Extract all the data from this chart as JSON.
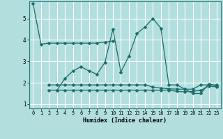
{
  "xlabel": "Humidex (Indice chaleur)",
  "background_color": "#b2dede",
  "grid_color": "#ffffff",
  "line_color": "#1a6b6b",
  "xlim": [
    -0.5,
    23.5
  ],
  "ylim": [
    0.8,
    5.8
  ],
  "yticks": [
    1,
    2,
    3,
    4,
    5
  ],
  "xticks": [
    0,
    1,
    2,
    3,
    4,
    5,
    6,
    7,
    8,
    9,
    10,
    11,
    12,
    13,
    14,
    15,
    16,
    17,
    18,
    19,
    20,
    21,
    22,
    23
  ],
  "series": [
    {
      "x": [
        0,
        1,
        2,
        3,
        4,
        5,
        6,
        7,
        8,
        9,
        10
      ],
      "y": [
        5.7,
        3.8,
        3.85,
        3.85,
        3.85,
        3.85,
        3.85,
        3.85,
        3.85,
        3.9,
        3.95
      ]
    },
    {
      "x": [
        3,
        4,
        5,
        6,
        7,
        8,
        9,
        10,
        11,
        12,
        13,
        14,
        15,
        16,
        17,
        18,
        19,
        20,
        21,
        22,
        23
      ],
      "y": [
        1.65,
        2.2,
        2.55,
        2.75,
        2.55,
        2.4,
        2.95,
        4.5,
        2.5,
        3.25,
        4.3,
        4.6,
        5.0,
        4.55,
        1.9,
        1.9,
        1.7,
        1.5,
        1.5,
        1.95,
        1.85
      ]
    },
    {
      "x": [
        2,
        3,
        4,
        5,
        6,
        7,
        8,
        9,
        10,
        11,
        12,
        13,
        14,
        15,
        16,
        17,
        18,
        19,
        20,
        21,
        22,
        23
      ],
      "y": [
        1.9,
        1.9,
        1.9,
        1.9,
        1.9,
        1.9,
        1.9,
        1.9,
        1.9,
        1.9,
        1.9,
        1.9,
        1.9,
        1.8,
        1.75,
        1.72,
        1.7,
        1.7,
        1.7,
        1.9,
        1.9,
        1.9
      ]
    },
    {
      "x": [
        2,
        3,
        4,
        5,
        6,
        7,
        8,
        9,
        10,
        11,
        12,
        13,
        14,
        15,
        16,
        17,
        18,
        19,
        20,
        21,
        22,
        23
      ],
      "y": [
        1.65,
        1.65,
        1.65,
        1.65,
        1.65,
        1.65,
        1.65,
        1.65,
        1.65,
        1.65,
        1.65,
        1.65,
        1.65,
        1.65,
        1.65,
        1.65,
        1.6,
        1.58,
        1.6,
        1.65,
        1.85,
        1.8
      ]
    }
  ]
}
